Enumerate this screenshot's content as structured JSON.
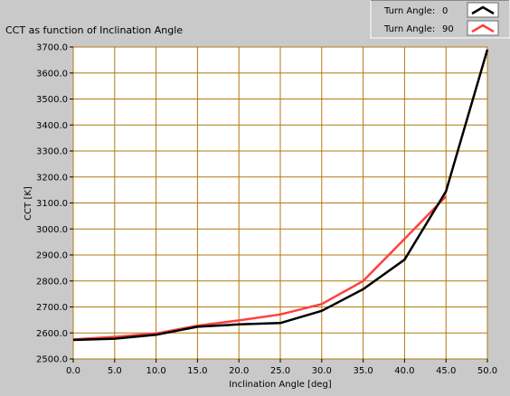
{
  "chart_data": {
    "type": "line",
    "title": "CCT as function of Inclination Angle",
    "xlabel": "Inclination Angle [deg]",
    "ylabel": "CCT [K]",
    "xlim": [
      0,
      50
    ],
    "ylim": [
      2500,
      3700
    ],
    "x_ticks": [
      "0.0",
      "5.0",
      "10.0",
      "15.0",
      "20.0",
      "25.0",
      "30.0",
      "35.0",
      "40.0",
      "45.0",
      "50.0"
    ],
    "y_ticks": [
      "2500.0",
      "2600.0",
      "2700.0",
      "2800.0",
      "2900.0",
      "3000.0",
      "3100.0",
      "3200.0",
      "3300.0",
      "3400.0",
      "3500.0",
      "3600.0",
      "3700.0"
    ],
    "grid": true,
    "legend_position": "top-right",
    "series": [
      {
        "name": "Turn Angle:",
        "value": "0",
        "color": "#000000",
        "x": [
          0,
          5,
          10,
          15,
          20,
          25,
          30,
          35,
          40,
          45,
          50
        ],
        "y": [
          2573,
          2578,
          2593,
          2624,
          2633,
          2638,
          2685,
          2768,
          2882,
          3145,
          3690
        ]
      },
      {
        "name": "Turn Angle:",
        "value": "90",
        "color": "#ff4040",
        "x": [
          0,
          5,
          10,
          15,
          20,
          25,
          30,
          35,
          40,
          45
        ],
        "y": [
          2575,
          2585,
          2598,
          2628,
          2648,
          2671,
          2711,
          2800,
          2962,
          3125
        ]
      }
    ]
  },
  "colors": {
    "background": "#c9c9c9",
    "plot_background": "#ffffff",
    "grid": "#b07a10"
  }
}
